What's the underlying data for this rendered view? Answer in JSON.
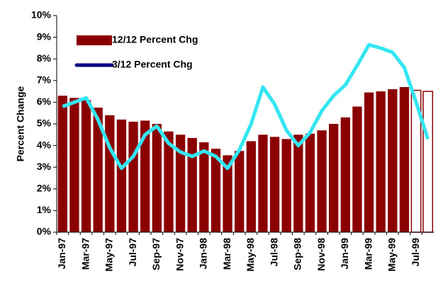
{
  "chart_data": {
    "type": "bar_line",
    "y_label": "Percent Change",
    "categories": [
      "Jan-97",
      null,
      "Mar-97",
      null,
      "May-97",
      null,
      "Jul-97",
      null,
      "Sep-97",
      null,
      "Nov-97",
      null,
      "Jan-98",
      null,
      "Mar-98",
      null,
      "May-98",
      null,
      "Jul-98",
      null,
      "Sep-98",
      null,
      "Nov-98",
      null,
      "Jan-99",
      null,
      "Mar-99",
      null,
      "May-99",
      null,
      "Jul-99",
      null
    ],
    "series": [
      {
        "name": "12/12 Percent Chg",
        "type": "bar",
        "color": "#8b0000",
        "hollow_last": 2,
        "values": [
          6.3,
          6.2,
          6.1,
          5.75,
          5.4,
          5.2,
          5.1,
          5.15,
          5.0,
          4.65,
          4.5,
          4.35,
          4.15,
          3.85,
          3.55,
          3.75,
          4.2,
          4.5,
          4.4,
          4.3,
          4.5,
          4.55,
          4.7,
          5.0,
          5.3,
          5.8,
          6.45,
          6.5,
          6.6,
          6.7,
          6.55,
          6.5
        ]
      },
      {
        "name": "3/12 Percent Chg",
        "type": "line",
        "color": "#33e6f2",
        "legend_color": "#000080",
        "values": [
          5.8,
          6.0,
          6.2,
          5.2,
          3.9,
          2.95,
          3.5,
          4.5,
          4.9,
          4.1,
          3.7,
          3.5,
          3.75,
          3.5,
          2.95,
          3.8,
          5.0,
          6.7,
          5.9,
          4.7,
          4.0,
          4.6,
          5.6,
          6.3,
          6.8,
          7.7,
          8.65,
          8.5,
          8.3,
          7.6,
          6.0,
          4.3
        ]
      }
    ],
    "ylim": [
      0,
      10
    ],
    "yticks": [
      {
        "value": 0,
        "label": "0%"
      },
      {
        "value": 1,
        "label": "1%"
      },
      {
        "value": 2,
        "label": "2%"
      },
      {
        "value": 3,
        "label": "3%"
      },
      {
        "value": 4,
        "label": "4%"
      },
      {
        "value": 5,
        "label": "5%"
      },
      {
        "value": 6,
        "label": "6%"
      },
      {
        "value": 7,
        "label": "7%"
      },
      {
        "value": 8,
        "label": "8%"
      },
      {
        "value": 9,
        "label": "9%"
      },
      {
        "value": 10,
        "label": "10%"
      }
    ],
    "legend": "upper left"
  }
}
